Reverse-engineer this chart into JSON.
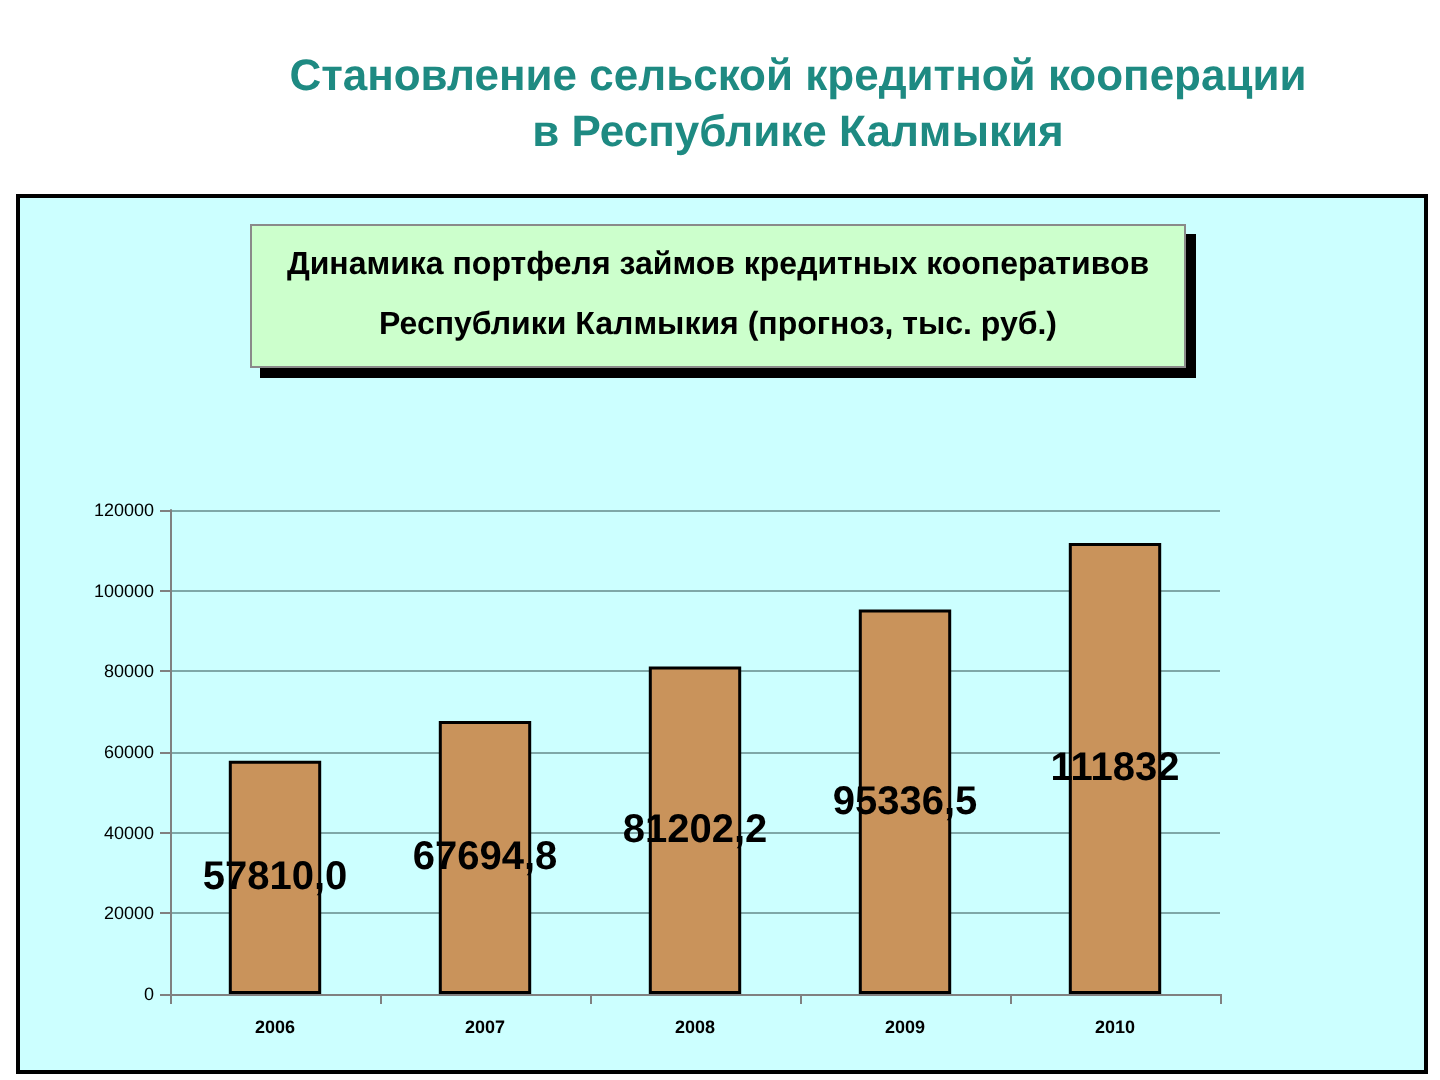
{
  "chart_data": {
    "type": "bar",
    "title": "Становление сельской кредитной кооперации в Республике Калмыкия",
    "subtitle": "Динамика портфеля займов кредитных кооперативов Республики Калмыкия (прогноз, тыс. руб.)",
    "categories": [
      "2006",
      "2007",
      "2008",
      "2009",
      "2010"
    ],
    "values": [
      57810.0,
      67694.8,
      81202.2,
      95336.5,
      111832
    ],
    "value_labels": [
      "57810,0",
      "67694,8",
      "81202,2",
      "95336,5",
      "111832"
    ],
    "color": "#c9935b",
    "ylim": [
      0,
      120000
    ],
    "yticks": [
      0,
      20000,
      40000,
      60000,
      80000,
      100000,
      120000
    ],
    "grid": "y"
  }
}
